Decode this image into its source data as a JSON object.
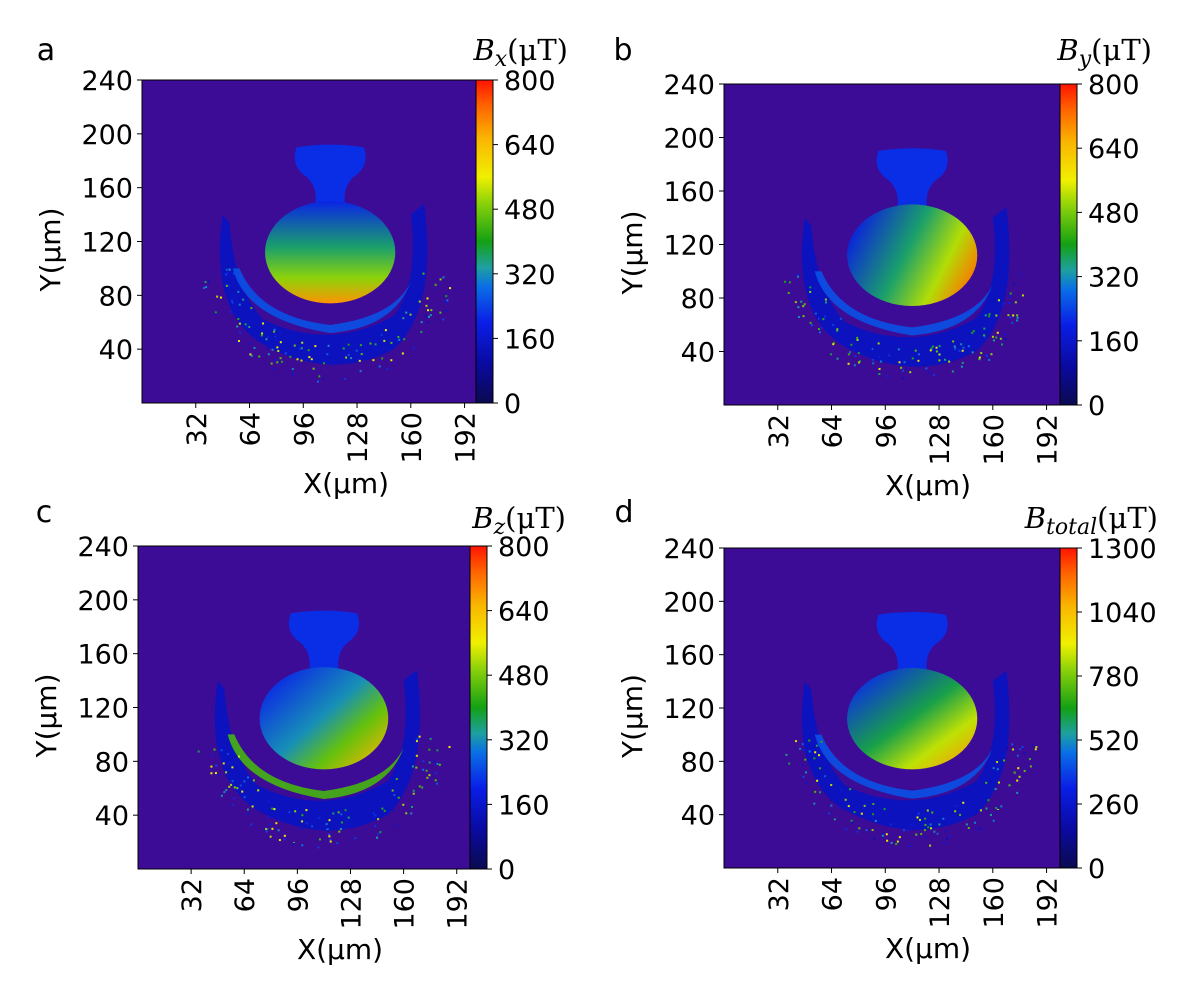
{
  "chart_data": [
    {
      "type": "heatmap",
      "panel_label": "a",
      "colorbar_symbol": "B",
      "colorbar_subscript": "x",
      "colorbar_unit": "(μT)",
      "xlabel": "X(μm)",
      "ylabel": "Y(μm)",
      "xticks": [
        "32",
        "64",
        "96",
        "128",
        "160",
        "192"
      ],
      "yticks": [
        "40",
        "80",
        "120",
        "160",
        "200",
        "240"
      ],
      "xlim": [
        0,
        200
      ],
      "ylim": [
        0,
        240
      ],
      "colorbar_ticks": [
        "0",
        "160",
        "320",
        "480",
        "640",
        "800"
      ],
      "colorbar_range": [
        0,
        800
      ],
      "pattern": "gradient peaking at bottom of flask (~640-720 μT), ~200-320 μT in neck and lower arc"
    },
    {
      "type": "heatmap",
      "panel_label": "b",
      "colorbar_symbol": "B",
      "colorbar_subscript": "y",
      "colorbar_unit": "(μT)",
      "xlabel": "X(μm)",
      "ylabel": "Y(μm)",
      "xticks": [
        "32",
        "64",
        "96",
        "128",
        "160",
        "192"
      ],
      "yticks": [
        "40",
        "80",
        "120",
        "160",
        "200",
        "240"
      ],
      "xlim": [
        0,
        200
      ],
      "ylim": [
        0,
        240
      ],
      "colorbar_ticks": [
        "0",
        "160",
        "320",
        "480",
        "640",
        "800"
      ],
      "colorbar_range": [
        0,
        800
      ],
      "pattern": "gradient peaking on right side of flask (~720 μT)"
    },
    {
      "type": "heatmap",
      "panel_label": "c",
      "colorbar_symbol": "B",
      "colorbar_subscript": "z",
      "colorbar_unit": "(μT)",
      "xlabel": "X(μm)",
      "ylabel": "Y(μm)",
      "xticks": [
        "32",
        "64",
        "96",
        "128",
        "160",
        "192"
      ],
      "yticks": [
        "40",
        "80",
        "120",
        "160",
        "200",
        "240"
      ],
      "xlim": [
        0,
        200
      ],
      "ylim": [
        0,
        240
      ],
      "colorbar_ticks": [
        "0",
        "160",
        "320",
        "480",
        "640",
        "800"
      ],
      "colorbar_range": [
        0,
        800
      ],
      "pattern": "peak on right and bottom of flask (~640 μT), left arc ~400-560 μT"
    },
    {
      "type": "heatmap",
      "panel_label": "d",
      "colorbar_symbol": "B",
      "colorbar_subscript": "total",
      "colorbar_unit": "(μT)",
      "xlabel": "X(μm)",
      "ylabel": "Y(μm)",
      "xticks": [
        "32",
        "64",
        "96",
        "128",
        "160",
        "192"
      ],
      "yticks": [
        "40",
        "80",
        "120",
        "160",
        "200",
        "240"
      ],
      "xlim": [
        0,
        200
      ],
      "ylim": [
        0,
        240
      ],
      "colorbar_ticks": [
        "0",
        "260",
        "520",
        "780",
        "1040",
        "1300"
      ],
      "colorbar_range": [
        0,
        1300
      ],
      "pattern": "peak on lower right of flask (~1000-1100 μT)"
    }
  ]
}
